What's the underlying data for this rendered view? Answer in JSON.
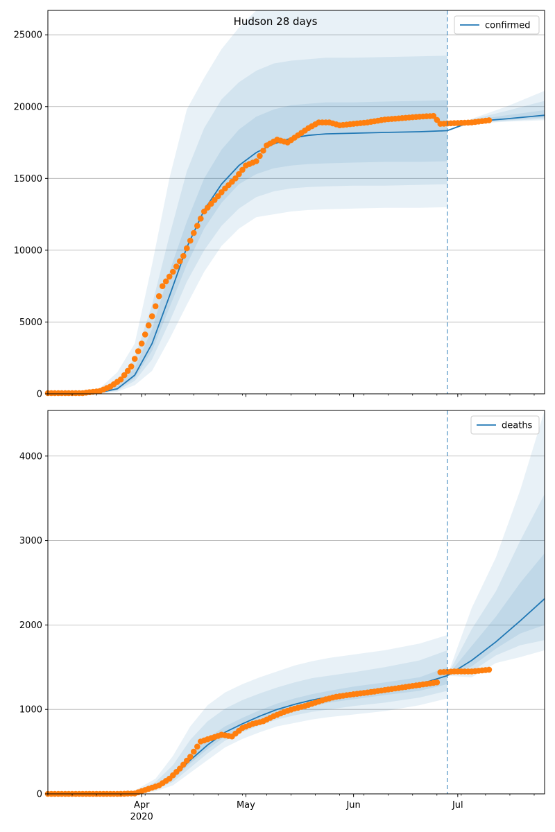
{
  "figure": {
    "title": "Hudson 28 days",
    "x_tick_labels": [
      {
        "date": "2020-04-01",
        "label": "Apr",
        "sublabel": "2020"
      },
      {
        "date": "2020-05-01",
        "label": "May",
        "sublabel": ""
      },
      {
        "date": "2020-06-01",
        "label": "Jun",
        "sublabel": ""
      },
      {
        "date": "2020-07-01",
        "label": "Jul",
        "sublabel": ""
      }
    ],
    "colors": {
      "model_line": "#1f77b4",
      "observed_points": "#ff7f0e",
      "band": "#1f77b4",
      "forecast_line": "#1f77b4",
      "grid": "#b0b0b0"
    }
  },
  "chart_data": [
    {
      "type": "line",
      "legend": "confirmed",
      "legend_position": "top-right",
      "grid": "y",
      "xlim": [
        "2020-03-05",
        "2020-07-26"
      ],
      "ylim": [
        0,
        26700
      ],
      "y_ticks": [
        0,
        5000,
        10000,
        15000,
        20000,
        25000
      ],
      "forecast_start": "2020-06-28",
      "model": {
        "x": [
          "2020-03-05",
          "2020-03-15",
          "2020-03-20",
          "2020-03-25",
          "2020-03-30",
          "2020-04-04",
          "2020-04-09",
          "2020-04-14",
          "2020-04-19",
          "2020-04-24",
          "2020-04-29",
          "2020-05-04",
          "2020-05-09",
          "2020-05-14",
          "2020-05-19",
          "2020-05-24",
          "2020-06-01",
          "2020-06-10",
          "2020-06-20",
          "2020-06-28",
          "2020-07-05",
          "2020-07-15",
          "2020-07-26"
        ],
        "y": [
          0,
          30,
          100,
          350,
          1300,
          3500,
          6800,
          10200,
          12800,
          14600,
          15900,
          16800,
          17400,
          17800,
          18000,
          18100,
          18150,
          18200,
          18250,
          18330,
          18950,
          19150,
          19400
        ],
        "bands": [
          {
            "opacity": 0.1,
            "lower": [
              0,
              0,
              20,
              150,
              600,
              1600,
              3800,
              6200,
              8500,
              10300,
              11500,
              12300,
              12500,
              12700,
              12800,
              12850,
              12900,
              12950,
              12950,
              13000,
              18800,
              18950,
              19050
            ],
            "upper": [
              0,
              150,
              400,
              1500,
              3500,
              9000,
              15000,
              19800,
              22000,
              24000,
              25500,
              26700,
              26700,
              26700,
              26700,
              26700,
              26700,
              26700,
              26700,
              26700,
              19150,
              20000,
              21100
            ]
          },
          {
            "opacity": 0.1,
            "lower": [
              0,
              10,
              40,
              220,
              900,
              2400,
              5000,
              7800,
              10000,
              11700,
              12900,
              13700,
              14100,
              14300,
              14400,
              14450,
              14500,
              14500,
              14550,
              14600,
              18850,
              19000,
              19150
            ],
            "upper": [
              0,
              90,
              250,
              900,
              2500,
              6200,
              11000,
              15500,
              18500,
              20500,
              21700,
              22500,
              23000,
              23200,
              23300,
              23400,
              23400,
              23450,
              23500,
              23550,
              19100,
              19700,
              20400
            ]
          },
          {
            "opacity": 0.1,
            "lower": [
              0,
              20,
              70,
              280,
              1100,
              3000,
              6000,
              9000,
              11500,
              13300,
              14600,
              15300,
              15700,
              15900,
              16000,
              16050,
              16100,
              16150,
              16150,
              16200,
              18900,
              19050,
              19250
            ],
            "upper": [
              0,
              50,
              160,
              550,
              1800,
              4500,
              8500,
              12000,
              15000,
              17000,
              18400,
              19300,
              19800,
              20100,
              20200,
              20300,
              20300,
              20350,
              20400,
              20450,
              19050,
              19400,
              19750
            ]
          }
        ]
      },
      "observed": {
        "x": [
          "2020-03-05",
          "2020-03-10",
          "2020-03-15",
          "2020-03-20",
          "2020-03-23",
          "2020-03-26",
          "2020-03-29",
          "2020-04-01",
          "2020-04-04",
          "2020-04-07",
          "2020-04-10",
          "2020-04-13",
          "2020-04-16",
          "2020-04-19",
          "2020-04-22",
          "2020-04-25",
          "2020-04-28",
          "2020-05-01",
          "2020-05-04",
          "2020-05-07",
          "2020-05-10",
          "2020-05-13",
          "2020-05-16",
          "2020-05-19",
          "2020-05-22",
          "2020-05-25",
          "2020-05-28",
          "2020-06-01",
          "2020-06-05",
          "2020-06-10",
          "2020-06-15",
          "2020-06-20",
          "2020-06-24",
          "2020-06-26",
          "2020-06-30",
          "2020-07-05",
          "2020-07-10"
        ],
        "y": [
          50,
          50,
          50,
          200,
          500,
          1000,
          1900,
          3500,
          5400,
          7500,
          8500,
          9600,
          11200,
          12700,
          13500,
          14300,
          15000,
          15900,
          16200,
          17300,
          17700,
          17500,
          18000,
          18500,
          18900,
          18900,
          18700,
          18800,
          18900,
          19100,
          19200,
          19300,
          19350,
          18800,
          18850,
          18900,
          19050
        ]
      }
    },
    {
      "type": "line",
      "legend": "deaths",
      "legend_position": "top-right",
      "grid": "y",
      "xlim": [
        "2020-03-05",
        "2020-07-26"
      ],
      "ylim": [
        0,
        4540
      ],
      "y_ticks": [
        0,
        1000,
        2000,
        3000,
        4000
      ],
      "forecast_start": "2020-06-28",
      "model": {
        "x": [
          "2020-03-05",
          "2020-03-25",
          "2020-03-30",
          "2020-04-05",
          "2020-04-10",
          "2020-04-15",
          "2020-04-20",
          "2020-04-25",
          "2020-04-30",
          "2020-05-05",
          "2020-05-10",
          "2020-05-15",
          "2020-05-20",
          "2020-05-25",
          "2020-06-01",
          "2020-06-10",
          "2020-06-20",
          "2020-06-28",
          "2020-07-05",
          "2020-07-12",
          "2020-07-19",
          "2020-07-26"
        ],
        "y": [
          0,
          0,
          10,
          80,
          200,
          400,
          580,
          730,
          830,
          920,
          1000,
          1060,
          1110,
          1150,
          1200,
          1250,
          1300,
          1400,
          1580,
          1800,
          2050,
          2310
        ],
        "bands": [
          {
            "opacity": 0.1,
            "lower": [
              0,
              0,
              0,
              30,
              100,
              250,
              400,
              550,
              650,
              730,
              800,
              840,
              880,
              910,
              940,
              980,
              1050,
              1130,
              1380,
              1550,
              1620,
              1700
            ],
            "upper": [
              0,
              0,
              40,
              180,
              450,
              800,
              1050,
              1200,
              1300,
              1380,
              1450,
              1520,
              1570,
              1610,
              1650,
              1700,
              1780,
              1880,
              2200,
              2800,
              3600,
              4540
            ]
          },
          {
            "opacity": 0.1,
            "lower": [
              0,
              0,
              5,
              50,
              140,
              310,
              480,
              630,
              730,
              810,
              880,
              930,
              970,
              1000,
              1040,
              1080,
              1140,
              1220,
              1450,
              1640,
              1760,
              1820
            ],
            "upper": [
              0,
              0,
              25,
              140,
              340,
              640,
              860,
              1010,
              1110,
              1190,
              1260,
              1320,
              1370,
              1400,
              1440,
              1500,
              1580,
              1700,
              1950,
              2400,
              3000,
              3550
            ]
          },
          {
            "opacity": 0.1,
            "lower": [
              0,
              0,
              8,
              65,
              170,
              360,
              530,
              680,
              780,
              860,
              940,
              990,
              1040,
              1080,
              1120,
              1170,
              1220,
              1300,
              1510,
              1720,
              1900,
              2000
            ],
            "upper": [
              0,
              0,
              15,
              100,
              250,
              470,
              660,
              800,
              900,
              990,
              1070,
              1130,
              1180,
              1220,
              1270,
              1320,
              1380,
              1500,
              1750,
              2100,
              2500,
              2850
            ]
          }
        ]
      },
      "observed": {
        "x": [
          "2020-03-05",
          "2020-03-15",
          "2020-03-25",
          "2020-03-30",
          "2020-04-03",
          "2020-04-06",
          "2020-04-09",
          "2020-04-12",
          "2020-04-15",
          "2020-04-18",
          "2020-04-21",
          "2020-04-24",
          "2020-04-27",
          "2020-04-30",
          "2020-05-03",
          "2020-05-06",
          "2020-05-09",
          "2020-05-12",
          "2020-05-15",
          "2020-05-18",
          "2020-05-21",
          "2020-05-24",
          "2020-05-27",
          "2020-06-01",
          "2020-06-05",
          "2020-06-10",
          "2020-06-15",
          "2020-06-20",
          "2020-06-25",
          "2020-06-26",
          "2020-06-30",
          "2020-07-05",
          "2020-07-10"
        ],
        "y": [
          0,
          0,
          0,
          5,
          60,
          100,
          180,
          300,
          440,
          620,
          660,
          700,
          680,
          780,
          830,
          860,
          920,
          970,
          1010,
          1040,
          1080,
          1120,
          1150,
          1180,
          1200,
          1230,
          1260,
          1290,
          1320,
          1440,
          1450,
          1450,
          1470
        ]
      }
    }
  ]
}
